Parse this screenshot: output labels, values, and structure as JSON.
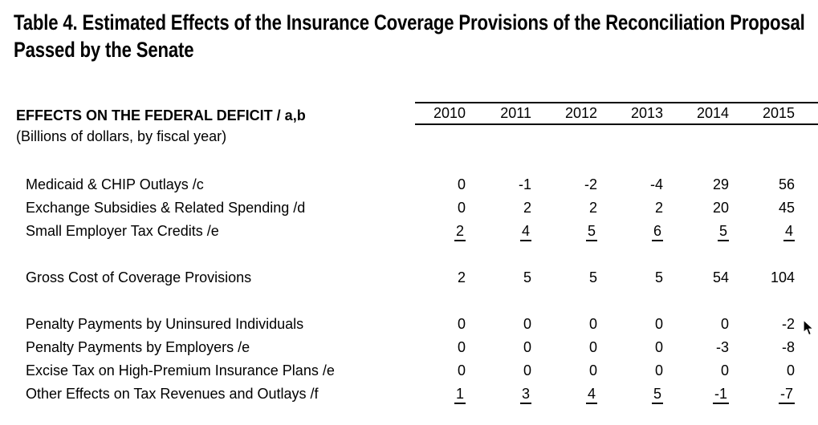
{
  "title": {
    "line1": "Table 4. Estimated Effects of the Insurance Coverage Provisions of the Reconciliation Proposal",
    "line2": "Passed by the Senate"
  },
  "table": {
    "header_label": "EFFECTS ON THE FEDERAL DEFICIT / a,b",
    "header_sublabel": "(Billions of dollars, by fiscal year)",
    "years": [
      "2010",
      "2011",
      "2012",
      "2013",
      "2014",
      "2015"
    ],
    "rows": [
      {
        "label": "Medicaid & CHIP Outlays /c",
        "values": [
          "0",
          "-1",
          "-2",
          "-4",
          "29",
          "56"
        ],
        "underlined": false,
        "spacer": false
      },
      {
        "label": "Exchange Subsidies & Related Spending /d",
        "values": [
          "0",
          "2",
          "2",
          "2",
          "20",
          "45"
        ],
        "underlined": false,
        "spacer": false
      },
      {
        "label": "Small Employer Tax Credits /e",
        "values": [
          "2",
          "4",
          "5",
          "6",
          "5",
          "4"
        ],
        "underlined": true,
        "spacer": false
      },
      {
        "label": "",
        "values": [],
        "underlined": false,
        "spacer": true
      },
      {
        "label": "Gross Cost of Coverage Provisions",
        "values": [
          "2",
          "5",
          "5",
          "5",
          "54",
          "104"
        ],
        "underlined": false,
        "spacer": false
      },
      {
        "label": "",
        "values": [],
        "underlined": false,
        "spacer": true
      },
      {
        "label": "Penalty Payments by Uninsured Individuals",
        "values": [
          "0",
          "0",
          "0",
          "0",
          "0",
          "-2"
        ],
        "underlined": false,
        "spacer": false
      },
      {
        "label": "Penalty Payments by Employers /e",
        "values": [
          "0",
          "0",
          "0",
          "0",
          "-3",
          "-8"
        ],
        "underlined": false,
        "spacer": false
      },
      {
        "label": "Excise Tax on High-Premium Insurance Plans /e",
        "values": [
          "0",
          "0",
          "0",
          "0",
          "0",
          "0"
        ],
        "underlined": false,
        "spacer": false
      },
      {
        "label": "Other Effects on Tax Revenues and Outlays /f",
        "values": [
          "1",
          "3",
          "4",
          "5",
          "-1",
          "-7"
        ],
        "underlined": true,
        "spacer": false
      }
    ]
  },
  "chart_data": {
    "type": "table",
    "title": "Table 4. Estimated Effects of the Insurance Coverage Provisions of the Reconciliation Proposal Passed by the Senate",
    "unit_note": "(Billions of dollars, by fiscal year)",
    "categories": [
      "2010",
      "2011",
      "2012",
      "2013",
      "2014",
      "2015"
    ],
    "series": [
      {
        "name": "Medicaid & CHIP Outlays /c",
        "values": [
          0,
          -1,
          -2,
          -4,
          29,
          56
        ]
      },
      {
        "name": "Exchange Subsidies & Related Spending /d",
        "values": [
          0,
          2,
          2,
          2,
          20,
          45
        ]
      },
      {
        "name": "Small Employer Tax Credits /e",
        "values": [
          2,
          4,
          5,
          6,
          5,
          4
        ]
      },
      {
        "name": "Gross Cost of Coverage Provisions",
        "values": [
          2,
          5,
          5,
          5,
          54,
          104
        ]
      },
      {
        "name": "Penalty Payments by Uninsured Individuals",
        "values": [
          0,
          0,
          0,
          0,
          0,
          -2
        ]
      },
      {
        "name": "Penalty Payments by Employers /e",
        "values": [
          0,
          0,
          0,
          0,
          -3,
          -8
        ]
      },
      {
        "name": "Excise Tax on High-Premium Insurance Plans /e",
        "values": [
          0,
          0,
          0,
          0,
          0,
          0
        ]
      },
      {
        "name": "Other Effects on Tax Revenues and Outlays /f",
        "values": [
          1,
          3,
          4,
          5,
          -1,
          -7
        ]
      }
    ]
  },
  "colors": {
    "background": "#ffffff",
    "text": "#000000",
    "rule": "#000000"
  }
}
